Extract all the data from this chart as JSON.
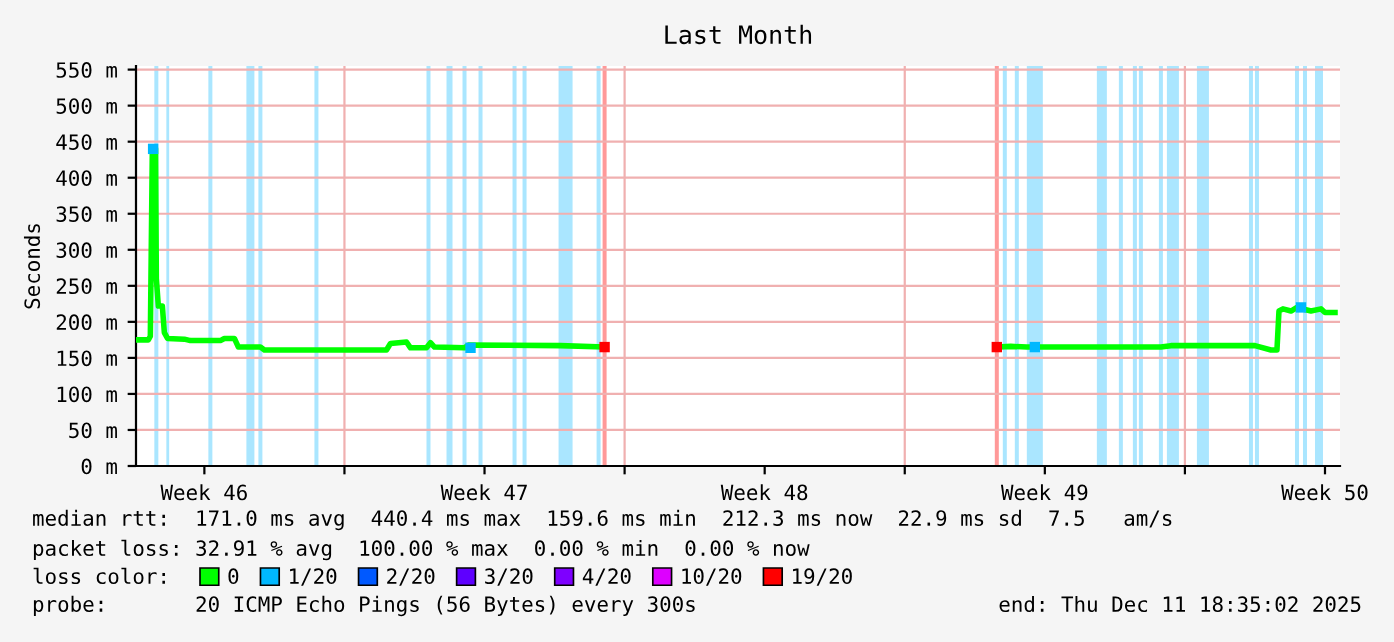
{
  "chart_data": {
    "type": "line",
    "title": "Last Month",
    "ylabel": "Seconds",
    "legend_title": "loss color:",
    "xlim": [
      "2025-11-11T19:00",
      "2025-12-11T21:00"
    ],
    "xticks": [
      {
        "value": "2025-11-13T12:00",
        "label": "Week 46"
      },
      {
        "value": "2025-11-17",
        "label": null
      },
      {
        "value": "2025-11-20T12:00",
        "label": "Week 47"
      },
      {
        "value": "2025-11-24",
        "label": null
      },
      {
        "value": "2025-11-27T12:00",
        "label": "Week 48"
      },
      {
        "value": "2025-12-01",
        "label": null
      },
      {
        "value": "2025-12-04T12:00",
        "label": "Week 49"
      },
      {
        "value": "2025-12-08",
        "label": null
      },
      {
        "value": "2025-12-11T12:00",
        "label": "Week 50"
      }
    ],
    "ylim": [
      0,
      555
    ],
    "yticks": [
      {
        "value": 0,
        "label": "0 m"
      },
      {
        "value": 50,
        "label": "50 m"
      },
      {
        "value": 100,
        "label": "100 m"
      },
      {
        "value": 150,
        "label": "150 m"
      },
      {
        "value": 200,
        "label": "200 m"
      },
      {
        "value": 250,
        "label": "250 m"
      },
      {
        "value": 300,
        "label": "300 m"
      },
      {
        "value": 350,
        "label": "350 m"
      },
      {
        "value": 400,
        "label": "400 m"
      },
      {
        "value": 450,
        "label": "450 m"
      },
      {
        "value": 500,
        "label": "500 m"
      },
      {
        "value": 550,
        "label": "550 m"
      }
    ],
    "grid": true,
    "legend": "bottom",
    "series": [
      {
        "name": "0",
        "color": "#00ff00",
        "x": [
          "2025-11-11T19:12",
          "2025-11-12T02:24",
          "2025-11-12T03:36",
          "2025-11-12T04:48",
          "2025-11-12T06:43",
          "2025-11-12T07:12",
          "2025-11-12T08:24",
          "2025-11-12T10:48",
          "2025-11-12T12:00",
          "2025-11-12T13:55",
          "2025-11-13T00:00",
          "2025-11-13T03:36",
          "2025-11-13T21:36",
          "2025-11-14T00:00",
          "2025-11-14T06:00",
          "2025-11-14T08:24",
          "2025-11-14T21:36",
          "2025-11-15T00:00",
          "2025-11-18T01:12",
          "2025-11-18T03:36",
          "2025-11-18T13:12",
          "2025-11-18T15:36",
          "2025-11-19T01:12",
          "2025-11-19T03:36",
          "2025-11-19T06:00",
          "2025-11-20T00:00",
          "2025-11-20T02:24",
          "2025-11-22T09:36",
          "2025-11-23T12:00",
          "2025-11-28T09:36",
          "2025-12-03T07:12",
          "2025-12-03T15:36",
          "2025-12-04T01:12",
          "2025-12-07T09:36",
          "2025-12-07T15:36",
          "2025-12-09T18:00",
          "2025-12-10T03:36",
          "2025-12-10T07:12",
          "2025-12-10T08:24",
          "2025-12-10T10:48",
          "2025-12-10T15:36",
          "2025-12-10T19:12",
          "2025-12-11T03:36",
          "2025-12-11T09:36",
          "2025-12-11T12:00",
          "2025-12-11T18:00"
        ],
        "values": [
          175,
          175,
          180,
          440,
          440,
          260,
          222,
          222,
          185,
          177,
          176,
          174,
          174,
          177,
          177,
          165,
          165,
          161,
          161,
          170,
          172,
          164,
          164,
          171,
          165,
          164,
          168,
          167,
          165,
          null,
          165,
          166,
          165,
          165,
          167,
          167,
          161,
          161,
          215,
          218,
          215,
          220,
          215,
          218,
          213,
          213
        ]
      },
      {
        "name": "1/20",
        "type": "scatter",
        "marker": "square",
        "color": "#00b8ff",
        "x": [
          "2025-11-12T05:16",
          "2025-11-20T03:36",
          "2025-12-04T06:00",
          "2025-12-10T21:36"
        ],
        "values": [
          440,
          164,
          165,
          220
        ]
      },
      {
        "name": "2/20",
        "color": "#0059ff"
      },
      {
        "name": "3/20",
        "color": "#5e00ff"
      },
      {
        "name": "4/20",
        "color": "#7e00ff"
      },
      {
        "name": "10/20",
        "color": "#dd00ff"
      },
      {
        "name": "19/20",
        "type": "scatter",
        "marker": "square",
        "color": "#ff0000",
        "x": [
          "2025-11-23T12:00",
          "2025-12-03T07:12"
        ],
        "values": [
          165,
          165
        ]
      }
    ],
    "bands": [
      {
        "axis": "x",
        "from": "2025-11-12T06:00",
        "to": "2025-11-12T08:24",
        "color": "#aae6ff"
      },
      {
        "axis": "x",
        "from": "2025-11-12T13:12",
        "to": "2025-11-12T14:53",
        "color": "#aae6ff"
      },
      {
        "axis": "x",
        "from": "2025-11-13T14:24",
        "to": "2025-11-13T16:48",
        "color": "#aae6ff"
      },
      {
        "axis": "x",
        "from": "2025-11-14T13:12",
        "to": "2025-11-14T18:00",
        "color": "#aae6ff"
      },
      {
        "axis": "x",
        "from": "2025-11-14T20:24",
        "to": "2025-11-14T22:48",
        "color": "#aae6ff"
      },
      {
        "axis": "x",
        "from": "2025-11-16T06:00",
        "to": "2025-11-16T08:24",
        "color": "#aae6ff"
      },
      {
        "axis": "x",
        "from": "2025-11-19T01:12",
        "to": "2025-11-19T03:36",
        "color": "#aae6ff"
      },
      {
        "axis": "x",
        "from": "2025-11-19T13:12",
        "to": "2025-11-19T16:48",
        "color": "#aae6ff"
      },
      {
        "axis": "x",
        "from": "2025-11-19T22:48",
        "to": "2025-11-20T01:12",
        "color": "#aae6ff"
      },
      {
        "axis": "x",
        "from": "2025-11-20T08:24",
        "to": "2025-11-20T10:48",
        "color": "#aae6ff"
      },
      {
        "axis": "x",
        "from": "2025-11-21T04:48",
        "to": "2025-11-21T07:12",
        "color": "#aae6ff"
      },
      {
        "axis": "x",
        "from": "2025-11-21T10:48",
        "to": "2025-11-21T13:12",
        "color": "#aae6ff"
      },
      {
        "axis": "x",
        "from": "2025-11-22T08:24",
        "to": "2025-11-22T16:48",
        "color": "#aae6ff"
      },
      {
        "axis": "x",
        "from": "2025-11-23T07:12",
        "to": "2025-11-23T09:36",
        "color": "#aae6ff"
      },
      {
        "axis": "x",
        "from": "2025-11-23T10:48",
        "to": "2025-11-23T13:12",
        "color": "#ff9999"
      },
      {
        "axis": "x",
        "from": "2025-12-03T06:00",
        "to": "2025-12-03T08:24",
        "color": "#ff9999"
      },
      {
        "axis": "x",
        "from": "2025-12-03T10:48",
        "to": "2025-12-03T13:12",
        "color": "#aae6ff"
      },
      {
        "axis": "x",
        "from": "2025-12-03T18:00",
        "to": "2025-12-03T20:24",
        "color": "#aae6ff"
      },
      {
        "axis": "x",
        "from": "2025-12-04T01:12",
        "to": "2025-12-04T10:48",
        "color": "#aae6ff"
      },
      {
        "axis": "x",
        "from": "2025-12-05T19:12",
        "to": "2025-12-06T01:12",
        "color": "#aae6ff"
      },
      {
        "axis": "x",
        "from": "2025-12-06T08:24",
        "to": "2025-12-06T10:48",
        "color": "#aae6ff"
      },
      {
        "axis": "x",
        "from": "2025-12-06T16:48",
        "to": "2025-12-06T19:12",
        "color": "#aae6ff"
      },
      {
        "axis": "x",
        "from": "2025-12-06T20:24",
        "to": "2025-12-06T22:48",
        "color": "#aae6ff"
      },
      {
        "axis": "x",
        "from": "2025-12-07T08:24",
        "to": "2025-12-07T10:48",
        "color": "#aae6ff"
      },
      {
        "axis": "x",
        "from": "2025-12-07T13:12",
        "to": "2025-12-07T20:24",
        "color": "#aae6ff"
      },
      {
        "axis": "x",
        "from": "2025-12-08T07:12",
        "to": "2025-12-08T14:24",
        "color": "#aae6ff"
      },
      {
        "axis": "x",
        "from": "2025-12-09T14:24",
        "to": "2025-12-09T16:48",
        "color": "#aae6ff"
      },
      {
        "axis": "x",
        "from": "2025-12-09T18:00",
        "to": "2025-12-09T20:24",
        "color": "#aae6ff"
      },
      {
        "axis": "x",
        "from": "2025-12-10T18:00",
        "to": "2025-12-10T20:24",
        "color": "#aae6ff"
      },
      {
        "axis": "x",
        "from": "2025-12-10T22:48",
        "to": "2025-12-11T01:12",
        "color": "#aae6ff"
      },
      {
        "axis": "x",
        "from": "2025-12-11T06:00",
        "to": "2025-12-11T10:48",
        "color": "#aae6ff"
      }
    ],
    "annotations": [
      "median rtt:  171.0 ms avg  440.4 ms max  159.6 ms min  212.3 ms now  22.9 ms sd  7.5   am/s",
      "packet loss: 32.91 % avg  100.00 % max  0.00 % min  0.00 % now",
      "probe:       20 ICMP Echo Pings (56 Bytes) every 300s",
      "end: Thu Dec 11 18:35:02 2025"
    ]
  }
}
